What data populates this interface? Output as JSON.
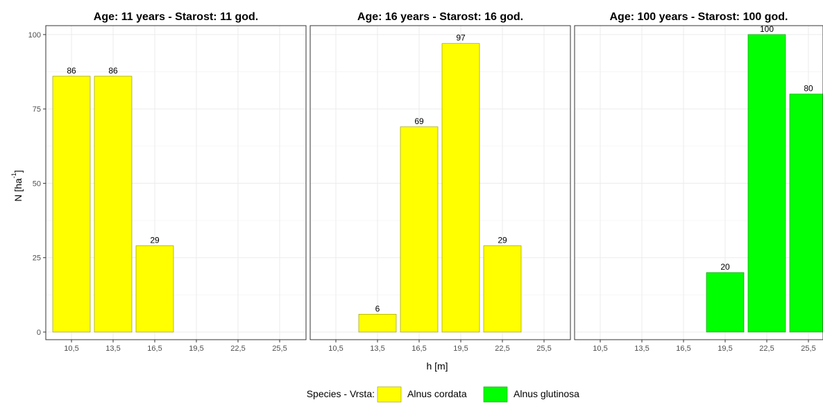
{
  "chart_data": {
    "type": "bar",
    "ylabel_base": "N [ha",
    "ylabel_sup": "-1",
    "ylabel_close": "]",
    "xlabel": "h [m]",
    "ylim": [
      0,
      103
    ],
    "y_ticks": [
      0,
      25,
      50,
      75,
      100
    ],
    "categories": [
      "10,5",
      "13,5",
      "16,5",
      "19,5",
      "22,5",
      "25,5"
    ],
    "grid": true,
    "legend": {
      "position": "bottom",
      "title": "Species - Vrsta:",
      "entries": [
        {
          "name": "Alnus cordata",
          "color": "#ffff00"
        },
        {
          "name": "Alnus glutinosa",
          "color": "#00ff00"
        }
      ]
    },
    "panels": [
      {
        "title": "Age: 11 years - Starost: 11 god.",
        "bars": [
          {
            "category": "10,5",
            "value": 86,
            "species": "Alnus cordata"
          },
          {
            "category": "13,5",
            "value": 86,
            "species": "Alnus cordata"
          },
          {
            "category": "16,5",
            "value": 29,
            "species": "Alnus cordata"
          }
        ]
      },
      {
        "title": "Age: 16 years - Starost: 16 god.",
        "bars": [
          {
            "category": "13,5",
            "value": 6,
            "species": "Alnus cordata"
          },
          {
            "category": "16,5",
            "value": 69,
            "species": "Alnus cordata"
          },
          {
            "category": "19,5",
            "value": 97,
            "species": "Alnus cordata"
          },
          {
            "category": "22,5",
            "value": 29,
            "species": "Alnus cordata"
          }
        ]
      },
      {
        "title": "Age: 100 years - Starost: 100 god.",
        "bars": [
          {
            "category": "19,5",
            "value": 20,
            "species": "Alnus glutinosa"
          },
          {
            "category": "22,5",
            "value": 100,
            "species": "Alnus glutinosa"
          },
          {
            "category": "25,5",
            "value": 80,
            "species": "Alnus glutinosa"
          }
        ]
      }
    ]
  }
}
